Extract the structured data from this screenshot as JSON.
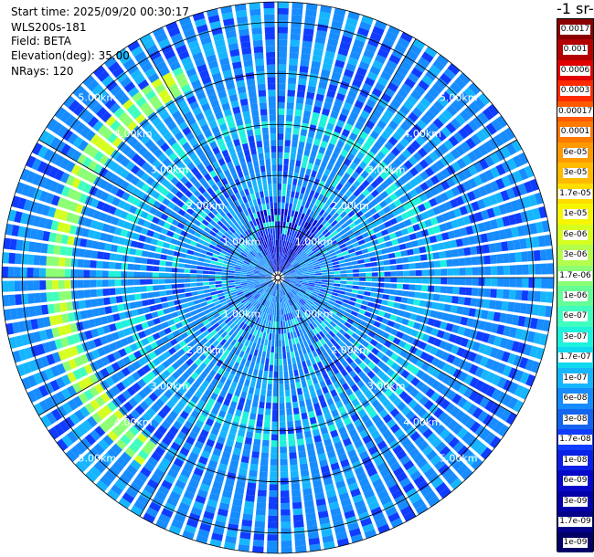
{
  "header": {
    "start_time": "Start time: 2025/09/20 00:30:17",
    "instrument": "WLS200s-181",
    "field": "Field: BETA",
    "elevation": "Elevation(deg): 35.00",
    "nrays": "NRays: 120"
  },
  "colorbar": {
    "title": "-1 sr-",
    "labels": [
      "0.0017",
      "0.001",
      "0.0006",
      "0.0003",
      "0.00017",
      "0.0001",
      "6e-05",
      "3e-05",
      "1.7e-05",
      "1e-05",
      "6e-06",
      "3e-06",
      "1.7e-06",
      "1e-06",
      "6e-07",
      "3e-07",
      "1.7e-07",
      "1e-07",
      "6e-08",
      "3e-08",
      "1.7e-08",
      "1e-08",
      "6e-09",
      "3e-09",
      "1.7e-09",
      "1e-09"
    ],
    "colors": [
      "#8a0000",
      "#b30000",
      "#e00000",
      "#ff2a00",
      "#ff5a00",
      "#ff7a00",
      "#ff9a00",
      "#ffbb00",
      "#ffdd00",
      "#f6f600",
      "#d6ff20",
      "#b4ff4c",
      "#8cff74",
      "#66ff96",
      "#40ffbe",
      "#1df2dc",
      "#10d8f0",
      "#16b6ff",
      "#168cff",
      "#1464f0",
      "#0f3cff",
      "#0a20e6",
      "#0606c8",
      "#0400a8",
      "#03008a",
      "#020066"
    ]
  },
  "chart_data": {
    "type": "heatmap",
    "projection": "polar PPI scan",
    "field": "BETA",
    "elevation_deg": 35.0,
    "n_rays": 120,
    "start_time": "2025/09/20 00:30:17",
    "range_rings_km": [
      1.0,
      2.0,
      3.0,
      4.0,
      5.0
    ],
    "ring_labels": [
      "1.00km",
      "2.00km",
      "3.00km",
      "4.00km",
      "5.00km"
    ],
    "max_range_km": 5.4,
    "typical_beta": "3e-08 to 6e-08",
    "features": [
      {
        "description": "enhanced backscatter ring",
        "range_km": 3.0,
        "beta": "1e-07 to 3e-07"
      },
      {
        "description": "enhanced backscatter arc (west)",
        "range_km": 4.3,
        "beta": "3e-07 to 1e-06"
      },
      {
        "description": "low backscatter near center (north)",
        "range_km": 0.8,
        "beta": "1e-08 to 3e-09"
      }
    ],
    "colorbar_scale": "log",
    "colorbar_range": [
      "1e-09",
      "0.0017"
    ]
  }
}
